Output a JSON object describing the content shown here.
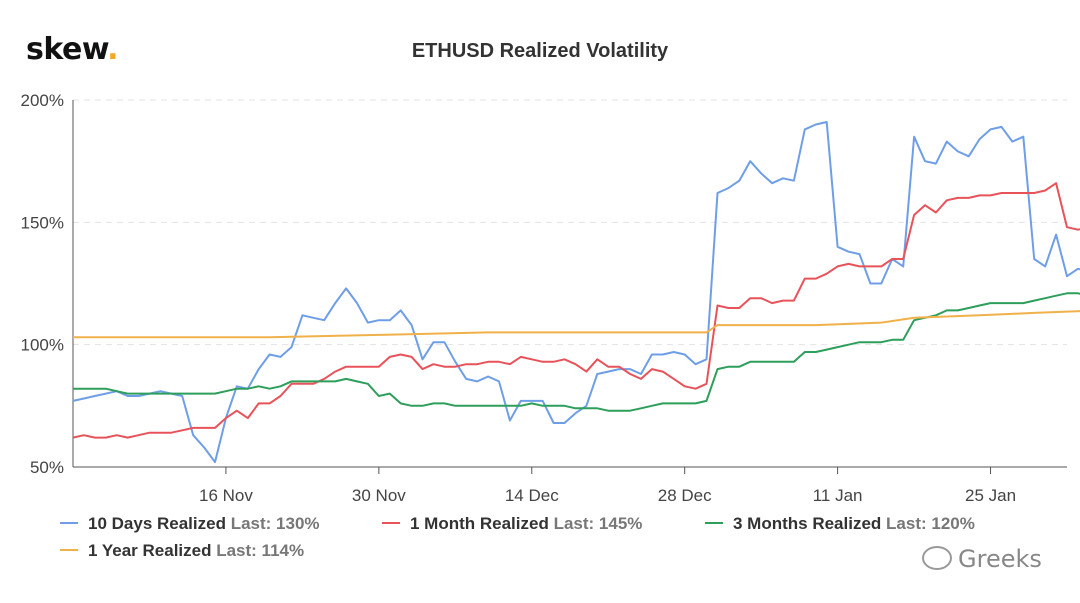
{
  "logo": {
    "text": "skew",
    "dot": "."
  },
  "chart_data": {
    "type": "line",
    "title": "ETHUSD Realized Volatility",
    "xlabel": "",
    "ylabel": "",
    "ylim": [
      50,
      200
    ],
    "y_ticks": [
      "50%",
      "100%",
      "150%",
      "200%"
    ],
    "y_tick_values": [
      50,
      100,
      150,
      200
    ],
    "x_ticks": [
      "16 Nov",
      "30 Nov",
      "14 Dec",
      "28 Dec",
      "11 Jan",
      "25 Jan"
    ],
    "x_tick_days": [
      16,
      30,
      44,
      58,
      72,
      86
    ],
    "x_range_days": [
      2,
      93
    ],
    "x_start_date": "2020-11-02",
    "grid": true,
    "legend_position": "bottom",
    "series": [
      {
        "name": "10 Days Realized",
        "last": "Last: 130%",
        "color": "#6f9ee8",
        "points": [
          [
            2,
            77
          ],
          [
            3,
            78
          ],
          [
            4,
            79
          ],
          [
            5,
            80
          ],
          [
            6,
            81
          ],
          [
            7,
            79
          ],
          [
            8,
            79
          ],
          [
            9,
            80
          ],
          [
            10,
            81
          ],
          [
            11,
            80
          ],
          [
            12,
            79
          ],
          [
            13,
            63
          ],
          [
            14,
            58
          ],
          [
            15,
            52
          ],
          [
            16,
            70
          ],
          [
            17,
            83
          ],
          [
            18,
            82
          ],
          [
            19,
            90
          ],
          [
            20,
            96
          ],
          [
            21,
            95
          ],
          [
            22,
            99
          ],
          [
            23,
            112
          ],
          [
            24,
            111
          ],
          [
            25,
            110
          ],
          [
            26,
            117
          ],
          [
            27,
            123
          ],
          [
            28,
            117
          ],
          [
            29,
            109
          ],
          [
            30,
            110
          ],
          [
            31,
            110
          ],
          [
            32,
            114
          ],
          [
            33,
            108
          ],
          [
            34,
            94
          ],
          [
            35,
            101
          ],
          [
            36,
            101
          ],
          [
            37,
            93
          ],
          [
            38,
            86
          ],
          [
            39,
            85
          ],
          [
            40,
            87
          ],
          [
            41,
            85
          ],
          [
            42,
            69
          ],
          [
            43,
            77
          ],
          [
            44,
            77
          ],
          [
            45,
            77
          ],
          [
            46,
            68
          ],
          [
            47,
            68
          ],
          [
            48,
            72
          ],
          [
            49,
            75
          ],
          [
            50,
            88
          ],
          [
            51,
            89
          ],
          [
            52,
            90
          ],
          [
            53,
            90
          ],
          [
            54,
            88
          ],
          [
            55,
            96
          ],
          [
            56,
            96
          ],
          [
            57,
            97
          ],
          [
            58,
            96
          ],
          [
            59,
            92
          ],
          [
            60,
            94
          ],
          [
            61,
            162
          ],
          [
            62,
            164
          ],
          [
            63,
            167
          ],
          [
            64,
            175
          ],
          [
            65,
            170
          ],
          [
            66,
            166
          ],
          [
            67,
            168
          ],
          [
            68,
            167
          ],
          [
            69,
            188
          ],
          [
            70,
            190
          ],
          [
            71,
            191
          ],
          [
            72,
            140
          ],
          [
            73,
            138
          ],
          [
            74,
            137
          ],
          [
            75,
            125
          ],
          [
            76,
            125
          ],
          [
            77,
            135
          ],
          [
            78,
            132
          ],
          [
            79,
            185
          ],
          [
            80,
            175
          ],
          [
            81,
            174
          ],
          [
            82,
            183
          ],
          [
            83,
            179
          ],
          [
            84,
            177
          ],
          [
            85,
            184
          ],
          [
            86,
            188
          ],
          [
            87,
            189
          ],
          [
            88,
            183
          ],
          [
            89,
            185
          ],
          [
            90,
            135
          ],
          [
            91,
            132
          ],
          [
            92,
            145
          ],
          [
            93,
            128
          ],
          [
            94,
            131
          ],
          [
            95,
            130
          ]
        ]
      },
      {
        "name": "1 Month Realized",
        "last": "Last: 145%",
        "color": "#e8535a",
        "points": [
          [
            2,
            62
          ],
          [
            3,
            63
          ],
          [
            4,
            62
          ],
          [
            5,
            62
          ],
          [
            6,
            63
          ],
          [
            7,
            62
          ],
          [
            8,
            63
          ],
          [
            9,
            64
          ],
          [
            10,
            64
          ],
          [
            11,
            64
          ],
          [
            12,
            65
          ],
          [
            13,
            66
          ],
          [
            14,
            66
          ],
          [
            15,
            66
          ],
          [
            16,
            70
          ],
          [
            17,
            73
          ],
          [
            18,
            70
          ],
          [
            19,
            76
          ],
          [
            20,
            76
          ],
          [
            21,
            79
          ],
          [
            22,
            84
          ],
          [
            23,
            84
          ],
          [
            24,
            84
          ],
          [
            25,
            86
          ],
          [
            26,
            89
          ],
          [
            27,
            91
          ],
          [
            28,
            91
          ],
          [
            29,
            91
          ],
          [
            30,
            91
          ],
          [
            31,
            95
          ],
          [
            32,
            96
          ],
          [
            33,
            95
          ],
          [
            34,
            90
          ],
          [
            35,
            92
          ],
          [
            36,
            91
          ],
          [
            37,
            91
          ],
          [
            38,
            92
          ],
          [
            39,
            92
          ],
          [
            40,
            93
          ],
          [
            41,
            93
          ],
          [
            42,
            92
          ],
          [
            43,
            95
          ],
          [
            44,
            94
          ],
          [
            45,
            93
          ],
          [
            46,
            93
          ],
          [
            47,
            94
          ],
          [
            48,
            92
          ],
          [
            49,
            89
          ],
          [
            50,
            94
          ],
          [
            51,
            91
          ],
          [
            52,
            91
          ],
          [
            53,
            88
          ],
          [
            54,
            86
          ],
          [
            55,
            90
          ],
          [
            56,
            89
          ],
          [
            57,
            86
          ],
          [
            58,
            83
          ],
          [
            59,
            82
          ],
          [
            60,
            84
          ],
          [
            61,
            116
          ],
          [
            62,
            115
          ],
          [
            63,
            115
          ],
          [
            64,
            119
          ],
          [
            65,
            119
          ],
          [
            66,
            117
          ],
          [
            67,
            118
          ],
          [
            68,
            118
          ],
          [
            69,
            127
          ],
          [
            70,
            127
          ],
          [
            71,
            129
          ],
          [
            72,
            132
          ],
          [
            73,
            133
          ],
          [
            74,
            132
          ],
          [
            75,
            132
          ],
          [
            76,
            132
          ],
          [
            77,
            135
          ],
          [
            78,
            135
          ],
          [
            79,
            153
          ],
          [
            80,
            157
          ],
          [
            81,
            154
          ],
          [
            82,
            159
          ],
          [
            83,
            160
          ],
          [
            84,
            160
          ],
          [
            85,
            161
          ],
          [
            86,
            161
          ],
          [
            87,
            162
          ],
          [
            88,
            162
          ],
          [
            89,
            162
          ],
          [
            90,
            162
          ],
          [
            91,
            163
          ],
          [
            92,
            166
          ],
          [
            93,
            148
          ],
          [
            94,
            147
          ],
          [
            95,
            148
          ],
          [
            96,
            145
          ]
        ]
      },
      {
        "name": "3 Months Realized",
        "last": "Last: 120%",
        "color": "#2e9e5b",
        "points": [
          [
            2,
            82
          ],
          [
            3,
            82
          ],
          [
            4,
            82
          ],
          [
            5,
            82
          ],
          [
            6,
            81
          ],
          [
            7,
            80
          ],
          [
            8,
            80
          ],
          [
            9,
            80
          ],
          [
            10,
            80
          ],
          [
            11,
            80
          ],
          [
            12,
            80
          ],
          [
            13,
            80
          ],
          [
            14,
            80
          ],
          [
            15,
            80
          ],
          [
            16,
            81
          ],
          [
            17,
            82
          ],
          [
            18,
            82
          ],
          [
            19,
            83
          ],
          [
            20,
            82
          ],
          [
            21,
            83
          ],
          [
            22,
            85
          ],
          [
            23,
            85
          ],
          [
            24,
            85
          ],
          [
            25,
            85
          ],
          [
            26,
            85
          ],
          [
            27,
            86
          ],
          [
            28,
            85
          ],
          [
            29,
            84
          ],
          [
            30,
            79
          ],
          [
            31,
            80
          ],
          [
            32,
            76
          ],
          [
            33,
            75
          ],
          [
            34,
            75
          ],
          [
            35,
            76
          ],
          [
            36,
            76
          ],
          [
            37,
            75
          ],
          [
            38,
            75
          ],
          [
            39,
            75
          ],
          [
            40,
            75
          ],
          [
            41,
            75
          ],
          [
            42,
            75
          ],
          [
            43,
            75
          ],
          [
            44,
            76
          ],
          [
            45,
            75
          ],
          [
            46,
            75
          ],
          [
            47,
            75
          ],
          [
            48,
            74
          ],
          [
            49,
            74
          ],
          [
            50,
            74
          ],
          [
            51,
            73
          ],
          [
            52,
            73
          ],
          [
            53,
            73
          ],
          [
            54,
            74
          ],
          [
            55,
            75
          ],
          [
            56,
            76
          ],
          [
            57,
            76
          ],
          [
            58,
            76
          ],
          [
            59,
            76
          ],
          [
            60,
            77
          ],
          [
            61,
            90
          ],
          [
            62,
            91
          ],
          [
            63,
            91
          ],
          [
            64,
            93
          ],
          [
            65,
            93
          ],
          [
            66,
            93
          ],
          [
            67,
            93
          ],
          [
            68,
            93
          ],
          [
            69,
            97
          ],
          [
            70,
            97
          ],
          [
            71,
            98
          ],
          [
            72,
            99
          ],
          [
            73,
            100
          ],
          [
            74,
            101
          ],
          [
            75,
            101
          ],
          [
            76,
            101
          ],
          [
            77,
            102
          ],
          [
            78,
            102
          ],
          [
            79,
            110
          ],
          [
            80,
            111
          ],
          [
            81,
            112
          ],
          [
            82,
            114
          ],
          [
            83,
            114
          ],
          [
            84,
            115
          ],
          [
            85,
            116
          ],
          [
            86,
            117
          ],
          [
            87,
            117
          ],
          [
            88,
            117
          ],
          [
            89,
            117
          ],
          [
            90,
            118
          ],
          [
            91,
            119
          ],
          [
            92,
            120
          ],
          [
            93,
            121
          ],
          [
            94,
            121
          ],
          [
            95,
            120
          ],
          [
            96,
            120
          ]
        ]
      },
      {
        "name": "1 Year Realized",
        "last": "Last: 114%",
        "color": "#f0b14a",
        "points": [
          [
            2,
            103
          ],
          [
            10,
            103
          ],
          [
            20,
            103
          ],
          [
            30,
            104
          ],
          [
            40,
            105
          ],
          [
            50,
            105
          ],
          [
            60,
            105
          ],
          [
            61,
            108
          ],
          [
            70,
            108
          ],
          [
            76,
            109
          ],
          [
            79,
            111
          ],
          [
            85,
            112
          ],
          [
            90,
            113
          ],
          [
            96,
            114
          ]
        ]
      }
    ]
  },
  "watermark": {
    "text": "Greeks"
  }
}
